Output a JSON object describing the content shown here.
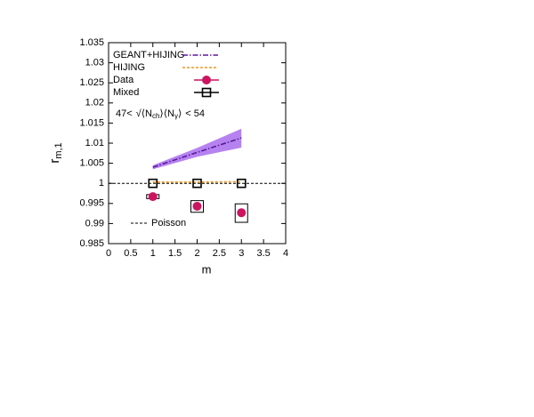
{
  "chart_data": {
    "type": "line",
    "ylabel": {
      "base": "r",
      "sub": "m,1"
    },
    "xlabel": "m",
    "annotation": {
      "prefix": "47<",
      "root": "√",
      "n1": "⟨N",
      "s1": "ch",
      "c1": "⟩",
      "n2": "⟨N",
      "s2": "γ",
      "c2": "⟩",
      "suffix": "< 54"
    },
    "x": [
      1,
      2,
      3
    ],
    "xlim": [
      0,
      4
    ],
    "xticks": [
      0,
      0.5,
      1,
      1.5,
      2,
      2.5,
      3,
      3.5,
      4
    ],
    "ylim": [
      0.985,
      1.035
    ],
    "yticks": [
      0.985,
      0.99,
      0.995,
      1,
      1.005,
      1.01,
      1.015,
      1.02,
      1.025,
      1.03,
      1.035
    ],
    "reference": {
      "value": 1,
      "label": "Poisson",
      "color": "#000000"
    },
    "series": [
      {
        "name": "GEANT+HIJING",
        "color": "#5a1a9a",
        "band_color": "#b682f0",
        "style": "dashdot",
        "values": [
          1.004,
          1.0077,
          1.0113
        ],
        "band_low": [
          1.0035,
          1.0066,
          1.0089
        ],
        "band_high": [
          1.0045,
          1.0088,
          1.0136
        ]
      },
      {
        "name": "HIJING",
        "color": "#f0961e",
        "style": "dashed",
        "values": [
          1.0003,
          1.0003,
          1.0004
        ]
      },
      {
        "name": "Data",
        "color": "#cc1461",
        "style": "circle",
        "values": [
          0.9967,
          0.9943,
          0.9927
        ],
        "sys_low": [
          0.9962,
          0.9928,
          0.9903
        ],
        "sys_high": [
          0.9972,
          0.9957,
          0.9949
        ]
      },
      {
        "name": "Mixed",
        "color": "#000000",
        "style": "square",
        "values": [
          1,
          1,
          1
        ]
      }
    ]
  }
}
